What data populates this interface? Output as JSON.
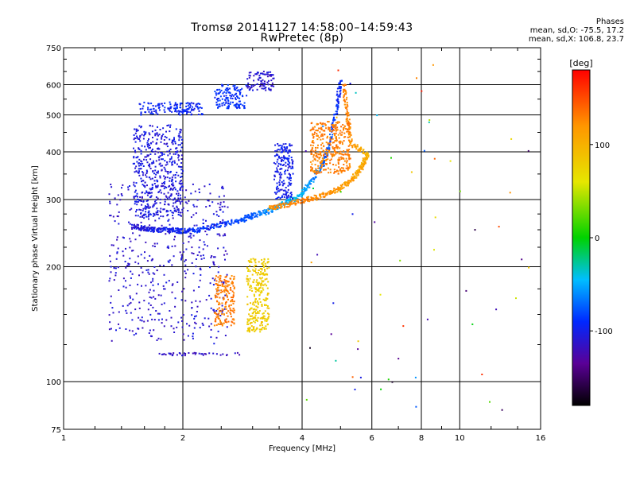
{
  "header": {
    "title_line1": "Tromsø 20141127 14:58:00–14:59:43",
    "title_line2": "RwPretec (8p)",
    "info_title": "Phases",
    "info_line1": "mean, sd,O: -75.5, 17.2",
    "info_line2": "mean, sd,X: 106.8, 23.7"
  },
  "chart_data": {
    "type": "scatter",
    "title": "Tromsø 20141127 14:58:00–14:59:43",
    "subtitle": "RwPretec (8p)",
    "xlabel": "Frequency [MHz]",
    "ylabel": "Stationary phase Virtual Height [km]",
    "x_scale": "log",
    "y_scale": "log",
    "xlim": [
      1,
      16
    ],
    "ylim": [
      75,
      750
    ],
    "x_ticks": [
      1,
      2,
      4,
      6,
      8,
      10,
      16
    ],
    "x_tick_labels": [
      "1",
      "2",
      "4",
      "6",
      "8",
      "10",
      "16"
    ],
    "y_ticks": [
      75,
      100,
      200,
      300,
      400,
      500,
      600,
      750
    ],
    "y_tick_labels": [
      "75",
      "100",
      "200",
      "300",
      "400",
      "500",
      "600",
      "750"
    ],
    "grid": true,
    "colorbar": {
      "label": "[deg]",
      "range": [
        -180,
        180
      ],
      "ticks": [
        100,
        0,
        -100
      ],
      "tick_labels": [
        "100",
        "0",
        "-100"
      ]
    },
    "o_trace": [
      {
        "f": 1.5,
        "h": 255,
        "phase": -110
      },
      {
        "f": 1.6,
        "h": 252,
        "phase": -105
      },
      {
        "f": 1.7,
        "h": 250,
        "phase": -100
      },
      {
        "f": 1.85,
        "h": 250,
        "phase": -100
      },
      {
        "f": 2.0,
        "h": 248,
        "phase": -95
      },
      {
        "f": 2.2,
        "h": 250,
        "phase": -90
      },
      {
        "f": 2.5,
        "h": 258,
        "phase": -85
      },
      {
        "f": 2.8,
        "h": 265,
        "phase": -80
      },
      {
        "f": 3.0,
        "h": 272,
        "phase": -75
      },
      {
        "f": 3.3,
        "h": 280,
        "phase": -60
      },
      {
        "f": 3.6,
        "h": 292,
        "phase": -50
      },
      {
        "f": 3.9,
        "h": 305,
        "phase": -40
      },
      {
        "f": 4.2,
        "h": 330,
        "phase": -60
      },
      {
        "f": 4.5,
        "h": 370,
        "phase": -70
      },
      {
        "f": 4.7,
        "h": 420,
        "phase": -80
      },
      {
        "f": 4.9,
        "h": 520,
        "phase": -90
      },
      {
        "f": 5.0,
        "h": 620,
        "phase": -95
      }
    ],
    "x_trace": [
      {
        "f": 3.3,
        "h": 285,
        "phase": 120
      },
      {
        "f": 3.6,
        "h": 290,
        "phase": 125
      },
      {
        "f": 4.0,
        "h": 298,
        "phase": 130
      },
      {
        "f": 4.4,
        "h": 305,
        "phase": 125
      },
      {
        "f": 4.8,
        "h": 315,
        "phase": 120
      },
      {
        "f": 5.2,
        "h": 330,
        "phase": 115
      },
      {
        "f": 5.5,
        "h": 350,
        "phase": 110
      },
      {
        "f": 5.7,
        "h": 370,
        "phase": 105
      },
      {
        "f": 5.85,
        "h": 395,
        "phase": 100
      },
      {
        "f": 5.3,
        "h": 420,
        "phase": 120
      },
      {
        "f": 5.2,
        "h": 500,
        "phase": 125
      },
      {
        "f": 5.1,
        "h": 600,
        "phase": 130
      }
    ],
    "clusters": [
      {
        "f_min": 1.55,
        "f_max": 2.25,
        "h_min": 500,
        "h_max": 540,
        "phase": -95
      },
      {
        "f_min": 2.4,
        "f_max": 2.9,
        "h_min": 520,
        "h_max": 600,
        "phase": -90
      },
      {
        "f_min": 2.9,
        "f_max": 3.4,
        "h_min": 580,
        "h_max": 650,
        "phase": -110
      },
      {
        "f_min": 1.3,
        "f_max": 2.6,
        "h_min": 125,
        "h_max": 330,
        "phase": -110
      },
      {
        "f_min": 1.5,
        "f_max": 2.0,
        "h_min": 270,
        "h_max": 470,
        "phase": -105
      },
      {
        "f_min": 2.4,
        "f_max": 2.7,
        "h_min": 140,
        "h_max": 190,
        "phase": 130
      },
      {
        "f_min": 2.9,
        "f_max": 3.3,
        "h_min": 135,
        "h_max": 210,
        "phase": 80
      },
      {
        "f_min": 3.4,
        "f_max": 3.8,
        "h_min": 300,
        "h_max": 420,
        "phase": -100
      },
      {
        "f_min": 4.2,
        "f_max": 5.3,
        "h_min": 350,
        "h_max": 480,
        "phase": 130
      },
      {
        "f_min": 1.7,
        "f_max": 2.8,
        "h_min": 117,
        "h_max": 119,
        "phase": -115
      }
    ]
  },
  "colors": {
    "grid": "#000000",
    "background": "#ffffff"
  }
}
